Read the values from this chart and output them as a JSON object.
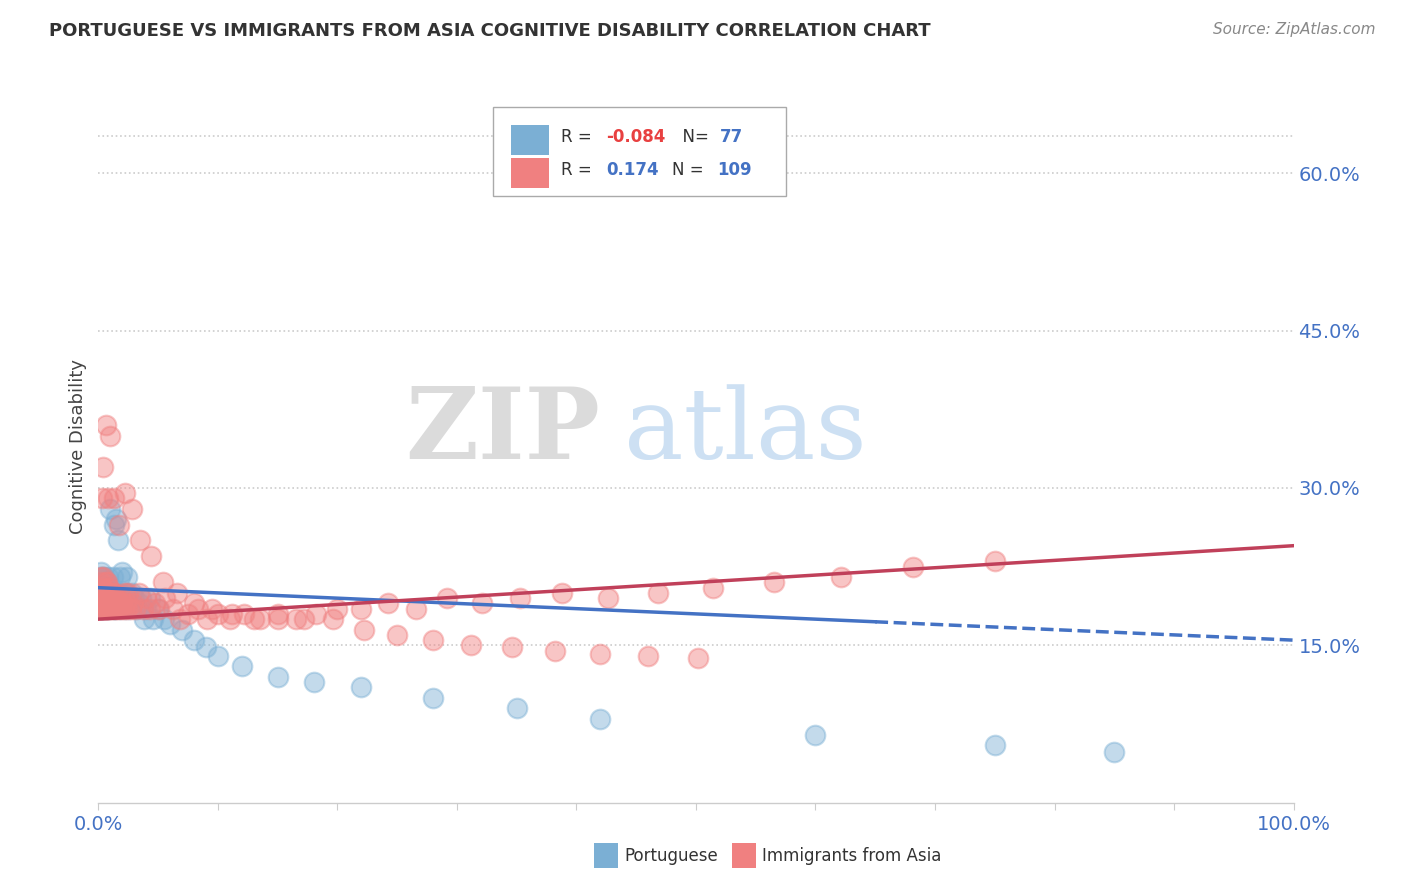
{
  "title": "PORTUGUESE VS IMMIGRANTS FROM ASIA COGNITIVE DISABILITY CORRELATION CHART",
  "source": "Source: ZipAtlas.com",
  "ylabel": "Cognitive Disability",
  "right_yticks": [
    "60.0%",
    "45.0%",
    "30.0%",
    "15.0%"
  ],
  "right_ytick_vals": [
    0.6,
    0.45,
    0.3,
    0.15
  ],
  "color_portuguese": "#7BAFD4",
  "color_asian": "#F08080",
  "watermark_zip": "ZIP",
  "watermark_atlas": "atlas",
  "portuguese_x": [
    0.001,
    0.001,
    0.002,
    0.002,
    0.002,
    0.003,
    0.003,
    0.003,
    0.003,
    0.004,
    0.004,
    0.004,
    0.005,
    0.005,
    0.005,
    0.006,
    0.006,
    0.006,
    0.007,
    0.007,
    0.007,
    0.008,
    0.008,
    0.009,
    0.009,
    0.01,
    0.01,
    0.011,
    0.011,
    0.012,
    0.012,
    0.013,
    0.013,
    0.014,
    0.014,
    0.015,
    0.015,
    0.016,
    0.016,
    0.017,
    0.018,
    0.018,
    0.019,
    0.02,
    0.021,
    0.022,
    0.023,
    0.024,
    0.025,
    0.026,
    0.027,
    0.028,
    0.03,
    0.032,
    0.034,
    0.036,
    0.038,
    0.04,
    0.043,
    0.046,
    0.05,
    0.055,
    0.06,
    0.07,
    0.08,
    0.09,
    0.1,
    0.12,
    0.15,
    0.18,
    0.22,
    0.28,
    0.35,
    0.42,
    0.6,
    0.75,
    0.85
  ],
  "portuguese_y": [
    0.195,
    0.215,
    0.185,
    0.2,
    0.22,
    0.19,
    0.205,
    0.185,
    0.21,
    0.195,
    0.185,
    0.215,
    0.2,
    0.19,
    0.215,
    0.185,
    0.2,
    0.21,
    0.195,
    0.185,
    0.21,
    0.2,
    0.215,
    0.185,
    0.195,
    0.28,
    0.195,
    0.2,
    0.19,
    0.215,
    0.195,
    0.185,
    0.265,
    0.2,
    0.185,
    0.27,
    0.195,
    0.25,
    0.19,
    0.2,
    0.215,
    0.185,
    0.195,
    0.22,
    0.195,
    0.185,
    0.2,
    0.215,
    0.195,
    0.185,
    0.19,
    0.2,
    0.195,
    0.185,
    0.19,
    0.195,
    0.175,
    0.185,
    0.195,
    0.175,
    0.185,
    0.175,
    0.17,
    0.165,
    0.155,
    0.148,
    0.14,
    0.13,
    0.12,
    0.115,
    0.11,
    0.1,
    0.09,
    0.08,
    0.065,
    0.055,
    0.048
  ],
  "asian_x": [
    0.001,
    0.001,
    0.002,
    0.002,
    0.002,
    0.003,
    0.003,
    0.003,
    0.004,
    0.004,
    0.004,
    0.005,
    0.005,
    0.005,
    0.006,
    0.006,
    0.007,
    0.007,
    0.007,
    0.008,
    0.008,
    0.009,
    0.009,
    0.01,
    0.01,
    0.011,
    0.011,
    0.012,
    0.012,
    0.013,
    0.014,
    0.015,
    0.015,
    0.016,
    0.017,
    0.018,
    0.019,
    0.02,
    0.021,
    0.022,
    0.023,
    0.024,
    0.025,
    0.027,
    0.029,
    0.031,
    0.034,
    0.037,
    0.04,
    0.043,
    0.047,
    0.051,
    0.056,
    0.062,
    0.068,
    0.075,
    0.083,
    0.091,
    0.1,
    0.11,
    0.122,
    0.135,
    0.15,
    0.165,
    0.182,
    0.2,
    0.22,
    0.242,
    0.266,
    0.292,
    0.321,
    0.353,
    0.388,
    0.426,
    0.468,
    0.514,
    0.565,
    0.621,
    0.682,
    0.75,
    0.003,
    0.004,
    0.006,
    0.008,
    0.01,
    0.013,
    0.017,
    0.022,
    0.028,
    0.035,
    0.044,
    0.054,
    0.066,
    0.08,
    0.095,
    0.112,
    0.13,
    0.15,
    0.172,
    0.196,
    0.222,
    0.25,
    0.28,
    0.312,
    0.346,
    0.382,
    0.42,
    0.46,
    0.502
  ],
  "asian_y": [
    0.19,
    0.21,
    0.185,
    0.2,
    0.215,
    0.19,
    0.205,
    0.185,
    0.2,
    0.19,
    0.215,
    0.185,
    0.2,
    0.19,
    0.21,
    0.185,
    0.195,
    0.185,
    0.21,
    0.195,
    0.185,
    0.205,
    0.19,
    0.185,
    0.2,
    0.195,
    0.185,
    0.19,
    0.2,
    0.185,
    0.2,
    0.185,
    0.195,
    0.185,
    0.19,
    0.195,
    0.185,
    0.19,
    0.185,
    0.2,
    0.19,
    0.185,
    0.2,
    0.185,
    0.19,
    0.185,
    0.2,
    0.185,
    0.195,
    0.185,
    0.19,
    0.185,
    0.195,
    0.185,
    0.175,
    0.18,
    0.185,
    0.175,
    0.18,
    0.175,
    0.18,
    0.175,
    0.18,
    0.175,
    0.18,
    0.185,
    0.185,
    0.19,
    0.185,
    0.195,
    0.19,
    0.195,
    0.2,
    0.195,
    0.2,
    0.205,
    0.21,
    0.215,
    0.225,
    0.23,
    0.29,
    0.32,
    0.36,
    0.29,
    0.35,
    0.29,
    0.265,
    0.295,
    0.28,
    0.25,
    0.235,
    0.21,
    0.2,
    0.19,
    0.185,
    0.18,
    0.175,
    0.175,
    0.175,
    0.175,
    0.165,
    0.16,
    0.155,
    0.15,
    0.148,
    0.145,
    0.142,
    0.14,
    0.138
  ],
  "trend_port_x0": 0.0,
  "trend_port_x1": 1.0,
  "trend_port_y0": 0.205,
  "trend_port_y1": 0.155,
  "trend_asia_x0": 0.0,
  "trend_asia_x1": 1.0,
  "trend_asia_y0": 0.175,
  "trend_asia_y1": 0.245,
  "ylim_min": 0.0,
  "ylim_max": 0.68,
  "xlim_min": 0.0,
  "xlim_max": 1.0
}
